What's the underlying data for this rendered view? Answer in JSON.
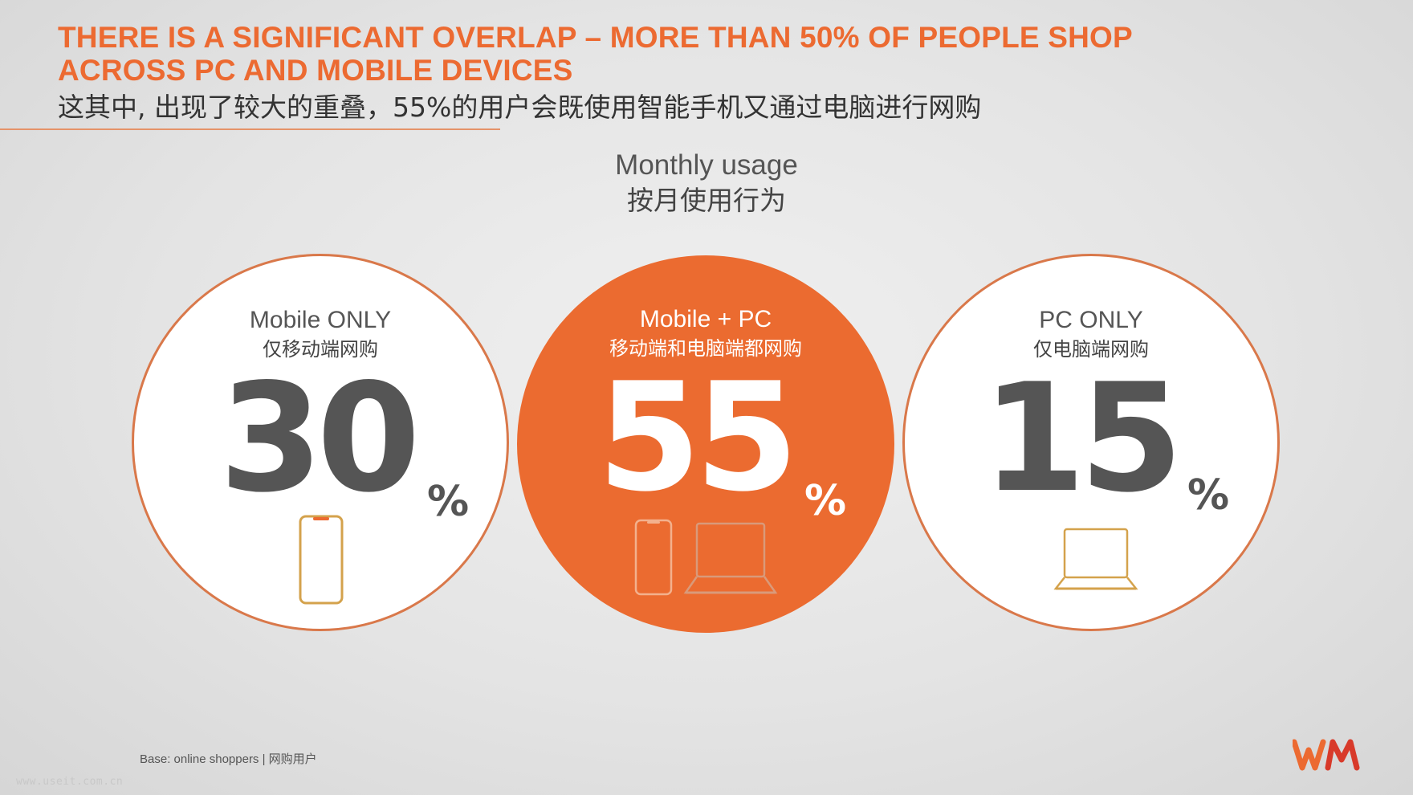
{
  "title": "THERE IS A SIGNIFICANT OVERLAP – MORE THAN 50% OF PEOPLE SHOP\nACROSS PC AND MOBILE DEVICES",
  "title_line1": "THERE IS A SIGNIFICANT OVERLAP – MORE THAN 50% OF PEOPLE SHOP",
  "title_line2": "ACROSS PC AND MOBILE DEVICES",
  "subtitle_cn": "这其中, 出现了较大的重叠，55%的用户会既使用智能手机又通过电脑进行网购",
  "section": {
    "title": "Monthly usage",
    "title_cn": "按月使用行为"
  },
  "segments": [
    {
      "label": "Mobile ONLY",
      "label_cn": "仅移动端网购",
      "value": "30",
      "unit": "%",
      "devices": [
        "phone-icon"
      ]
    },
    {
      "label": "Mobile + PC",
      "label_cn": "移动端和电脑端都网购",
      "value": "55",
      "unit": "%",
      "devices": [
        "phone-icon",
        "laptop-icon"
      ]
    },
    {
      "label": "PC ONLY",
      "label_cn": "仅电脑端网购",
      "value": "15",
      "unit": "%",
      "devices": [
        "laptop-icon"
      ]
    }
  ],
  "footnote": "Base: online shoppers | 网购用户",
  "watermark": "www.useit.com.cn",
  "colors": {
    "accent": "#ec6a31",
    "orange_fill": "#eb6b30",
    "number_gray": "#555555",
    "device_gold": "#d4a24c"
  },
  "logo": "wm-logo"
}
